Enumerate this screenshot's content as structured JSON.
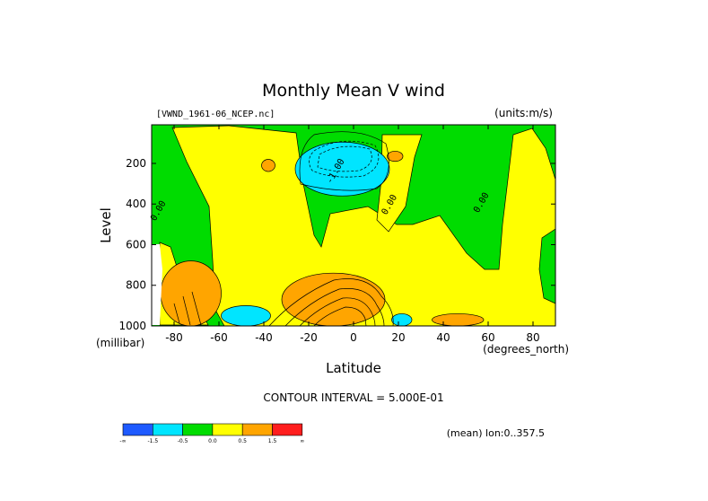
{
  "chart_data": {
    "type": "heatmap",
    "title": "Monthly Mean V wind",
    "file_label": "[VWND_1961-06_NCEP.nc]",
    "units_label": "(units:m/s)",
    "xlabel": "Latitude",
    "x_units": "(degrees_north)",
    "ylabel": "Level",
    "y_units": "(millibar)",
    "x_ticks": [
      "-80",
      "-60",
      "-40",
      "-20",
      "0",
      "20",
      "40",
      "60",
      "80"
    ],
    "x_tick_values": [
      -80,
      -60,
      -40,
      -20,
      0,
      20,
      40,
      60,
      80
    ],
    "y_ticks": [
      "200",
      "400",
      "600",
      "800",
      "1000"
    ],
    "y_tick_values": [
      200,
      400,
      600,
      800,
      1000
    ],
    "xlim": [
      -90,
      90
    ],
    "ylim": [
      1000,
      10
    ],
    "contour_interval_text": "CONTOUR INTERVAL = 5.000E-01",
    "mean_text": "(mean) lon:0..357.5",
    "contour_labels": [
      {
        "text": "-1.00",
        "lat": -7,
        "level": 245
      },
      {
        "text": "0.00",
        "lat": -86,
        "level": 440
      },
      {
        "text": "0.00",
        "lat": 17,
        "level": 410
      },
      {
        "text": "0.00",
        "lat": 58,
        "level": 400
      }
    ],
    "colorbar": {
      "colors": [
        "#1e5aff",
        "#00e5ff",
        "#00dc00",
        "#ffff00",
        "#ffa500",
        "#ff1e1e"
      ],
      "labels": [
        "-∞",
        "-1.5",
        "-0.5",
        "0.0",
        "0.5",
        "1.5",
        "∞"
      ]
    },
    "regions": [
      {
        "name": "strong-southward-upper",
        "value": -1.5,
        "lat": [
          -22,
          13
        ],
        "level": [
          120,
          330
        ],
        "color": "#1e5aff"
      },
      {
        "name": "southward-halo-upper",
        "value": -0.75,
        "lat": [
          -26,
          16
        ],
        "level": [
          95,
          360
        ],
        "color": "#00e5ff"
      },
      {
        "name": "southward-lower-south",
        "value": -0.6,
        "lat": [
          -59,
          -37
        ],
        "level": [
          900,
          1000
        ],
        "color": "#00e5ff"
      },
      {
        "name": "southward-lower-equator",
        "value": -0.6,
        "lat": [
          17,
          26
        ],
        "level": [
          940,
          1000
        ],
        "color": "#00e5ff"
      },
      {
        "name": "northward-lower-core",
        "value": 2.0,
        "lat": [
          -25,
          4
        ],
        "level": [
          860,
          1000
        ],
        "color": "#ff1e1e"
      },
      {
        "name": "northward-lower-shell",
        "value": 1.0,
        "lat": [
          -32,
          14
        ],
        "level": [
          740,
          1000
        ],
        "color": "#ffa500"
      },
      {
        "name": "northward-antarctic",
        "value": 1.0,
        "lat": [
          -86,
          -59
        ],
        "level": [
          680,
          1000
        ],
        "color": "#ffa500"
      },
      {
        "name": "northward-40N-surface",
        "value": 0.7,
        "lat": [
          35,
          58
        ],
        "level": [
          940,
          1000
        ],
        "color": "#ffa500"
      },
      {
        "name": "northward-upper-small-1",
        "value": 0.6,
        "lat": [
          -41,
          -35
        ],
        "level": [
          180,
          240
        ],
        "color": "#ffa500"
      },
      {
        "name": "northward-upper-small-2",
        "value": 0.6,
        "lat": [
          15,
          22
        ],
        "level": [
          140,
          190
        ],
        "color": "#ffa500"
      }
    ]
  }
}
